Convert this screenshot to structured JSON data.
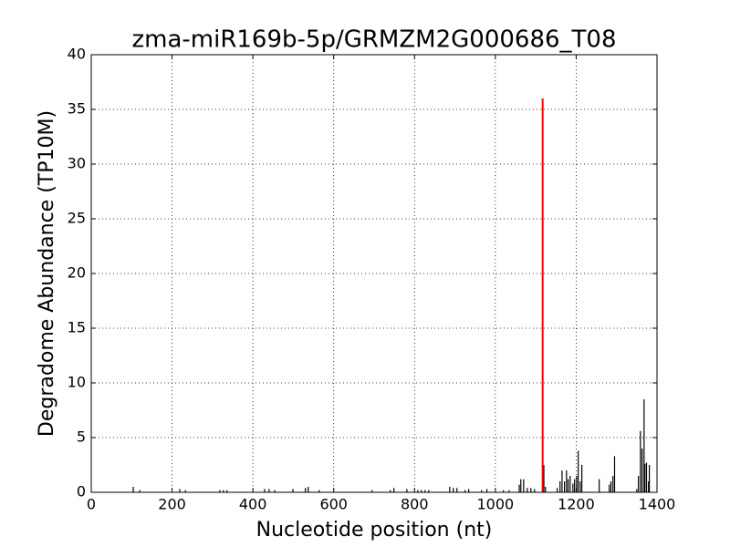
{
  "chart_data": {
    "type": "stem",
    "title": "zma-miR169b-5p/GRMZM2G000686_T08",
    "x_label": "Nucleotide position (nt)",
    "y_label": "Degradome Abundance (TP10M)",
    "xlim": [
      0,
      1400
    ],
    "ylim": [
      0,
      40
    ],
    "xticks": [
      0,
      200,
      400,
      600,
      800,
      1000,
      1200,
      1400
    ],
    "yticks": [
      0,
      5,
      10,
      15,
      20,
      25,
      30,
      35,
      40
    ],
    "grid": true,
    "series": [
      {
        "color": "#000000",
        "x": [
          104,
          120,
          219,
          233,
          318,
          327,
          336,
          429,
          440,
          454,
          499,
          530,
          537,
          564,
          695,
          740,
          749,
          781,
          808,
          817,
          826,
          835,
          887,
          896,
          905,
          925,
          934,
          966,
          979,
          1020,
          1034,
          1059,
          1063,
          1070,
          1079,
          1088,
          1097,
          1120,
          1124,
          1153,
          1160,
          1165,
          1171,
          1176,
          1180,
          1185,
          1192,
          1196,
          1201,
          1205,
          1210,
          1214,
          1257,
          1282,
          1286,
          1291,
          1295,
          1350,
          1354,
          1359,
          1363,
          1368,
          1370,
          1374,
          1379,
          1381
        ],
        "values": [
          0.5,
          0.2,
          0.3,
          0.2,
          0.2,
          0.2,
          0.2,
          0.3,
          0.3,
          0.2,
          0.3,
          0.4,
          0.5,
          0.2,
          0.2,
          0.2,
          0.4,
          0.3,
          0.2,
          0.2,
          0.2,
          0.2,
          0.5,
          0.4,
          0.4,
          0.2,
          0.3,
          0.2,
          0.3,
          0.2,
          0.2,
          0.7,
          1.2,
          1.2,
          0.4,
          0.4,
          0.3,
          2.5,
          0.5,
          0.4,
          1.0,
          2.0,
          1.0,
          2.0,
          1.2,
          1.5,
          0.8,
          1.2,
          1.5,
          3.8,
          1.0,
          2.5,
          1.2,
          0.7,
          1.0,
          1.5,
          3.3,
          0.3,
          1.5,
          5.6,
          4.0,
          8.5,
          2.6,
          2.7,
          1.0,
          2.5
        ]
      },
      {
        "color": "#ff0000",
        "x": [
          1117
        ],
        "values": [
          36
        ]
      }
    ]
  }
}
